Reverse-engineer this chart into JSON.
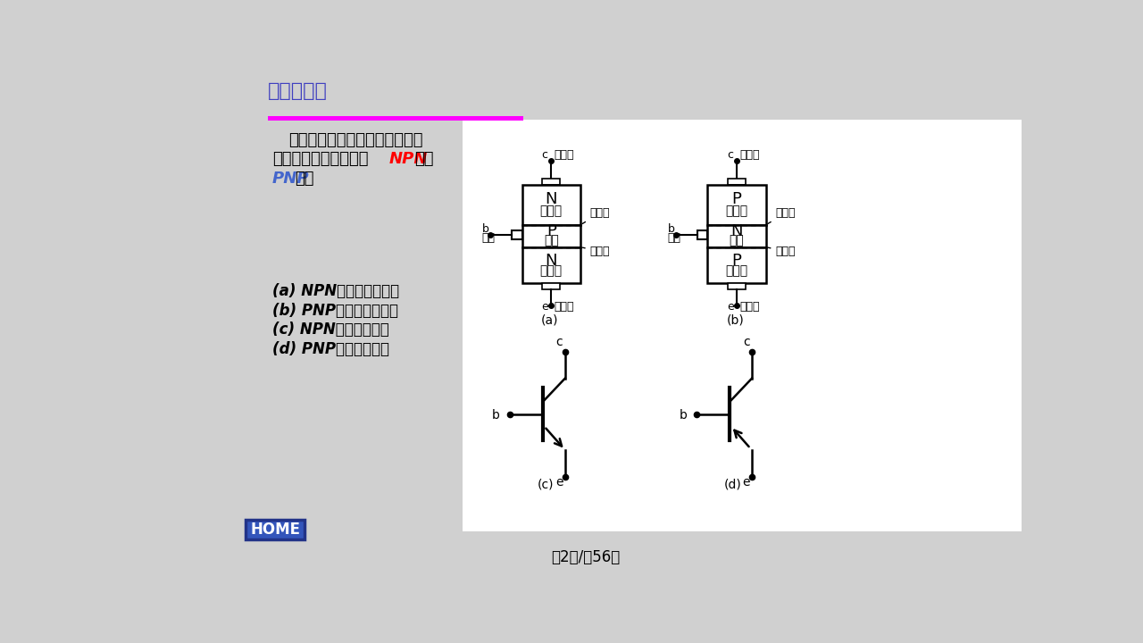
{
  "bg_color": "#d0d0d0",
  "white_panel_color": "#ffffff",
  "title_text": "的结构简介",
  "title_color": "#4040c0",
  "bar_color": "#ff00ff",
  "desc_text1": "半导体三极管的结构示意图如图",
  "desc_text2": "所示。它有两种类型：",
  "desc_text3": "NPN",
  "desc_text4": "型和",
  "desc_text5": "PNP",
  "desc_text6": "型。",
  "legend_a": "(a) NPN型管结构示意图",
  "legend_b": "(b) PNP型管结构示意图",
  "legend_c": "(c) NPN管的电路符号",
  "legend_d": "(d) PNP管的电路符号",
  "footer": "第2页/共56页",
  "home_text": "HOME",
  "home_bg": "#3355bb",
  "home_text_color": "#ffffff"
}
